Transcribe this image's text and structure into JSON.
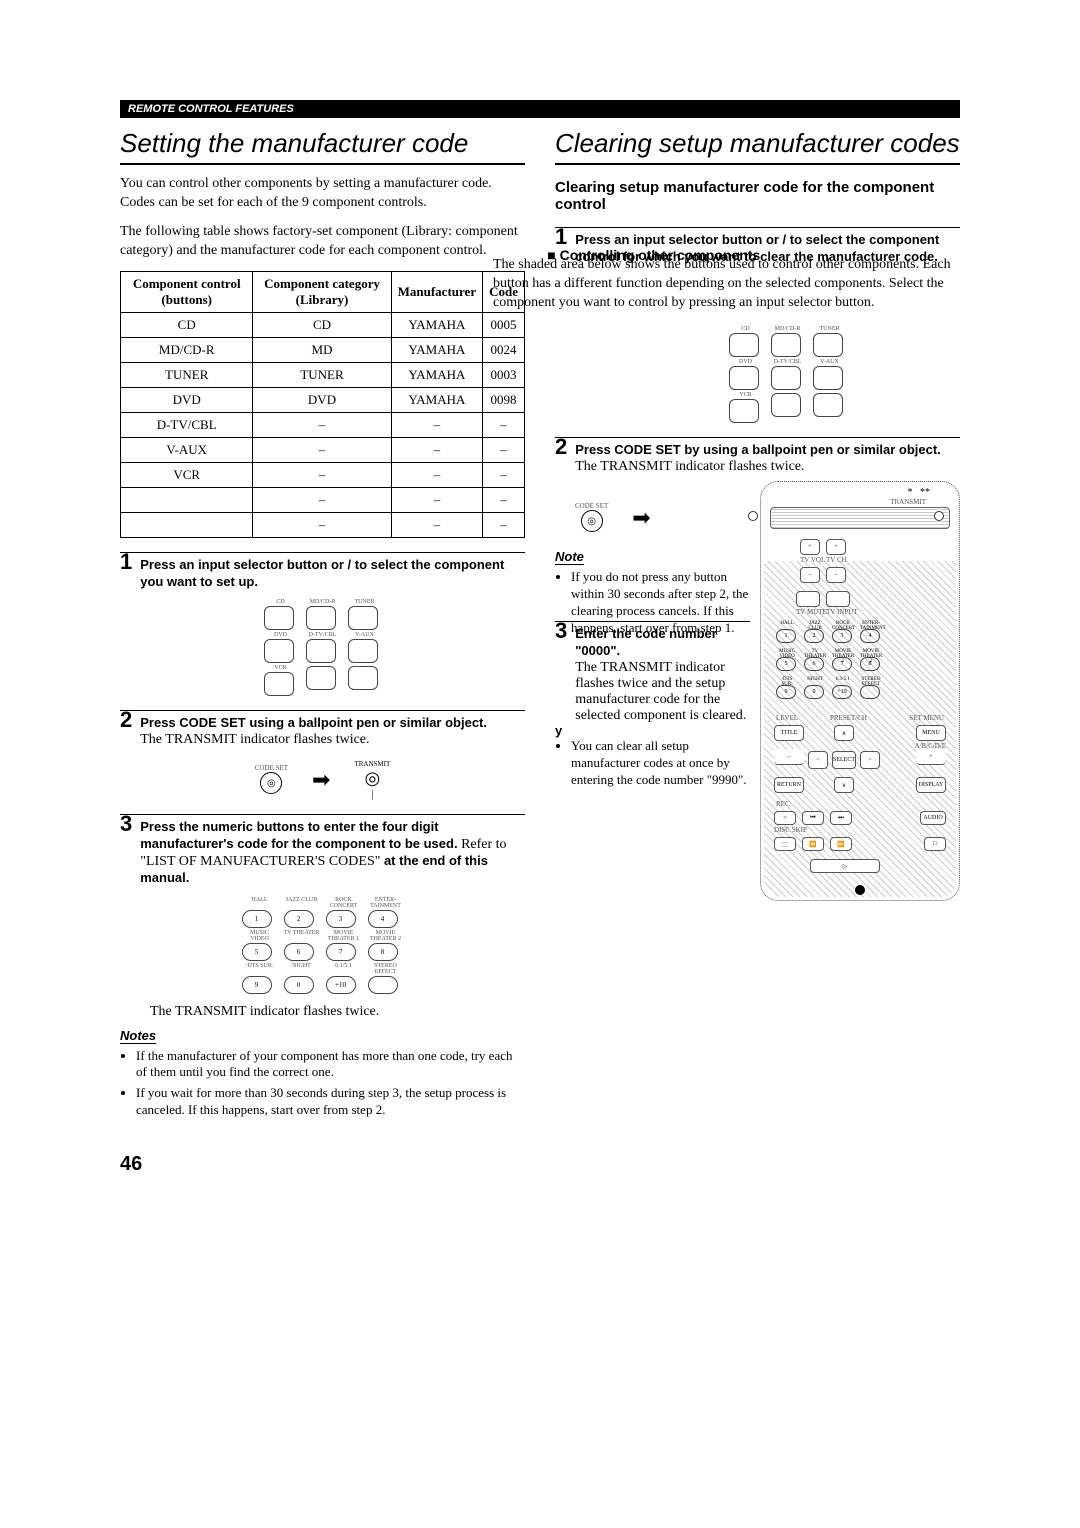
{
  "banner": "REMOTE CONTROL FEATURES",
  "left": {
    "title": "Setting the manufacturer code",
    "intro1": "You can control other components by setting a manufacturer code. Codes can be set for each of the 9 component controls.",
    "intro2": "The following table shows factory-set component (Library: component category) and the manufacturer code for each component control.",
    "table": {
      "headers": [
        "Component control (buttons)",
        "Component category (Library)",
        "Manufacturer",
        "Code"
      ],
      "rows": [
        [
          "CD",
          "CD",
          "YAMAHA",
          "0005"
        ],
        [
          "MD/CD-R",
          "MD",
          "YAMAHA",
          "0024"
        ],
        [
          "TUNER",
          "TUNER",
          "YAMAHA",
          "0003"
        ],
        [
          "DVD",
          "DVD",
          "YAMAHA",
          "0098"
        ],
        [
          "D-TV/CBL",
          "–",
          "–",
          "–"
        ],
        [
          "V-AUX",
          "–",
          "–",
          "–"
        ],
        [
          "VCR",
          "–",
          "–",
          "–"
        ],
        [
          "",
          "–",
          "–",
          "–"
        ],
        [
          "",
          "–",
          "–",
          "–"
        ]
      ]
    },
    "step1": "Press an input selector button or     /     to select the component you want to set up.",
    "step2_bold": "Press CODE SET using a ballpoint pen or similar object.",
    "step2_text": "The TRANSMIT indicator flashes twice.",
    "step3_bold": "Press the numeric buttons to enter the four digit manufacturer's code for the component to be used.",
    "step3_text1": "Refer to \"LIST OF MANUFACTURER'S CODES\"",
    "step3_bold2": "at the end of this manual.",
    "step3_text2": "The TRANSMIT indicator flashes twice.",
    "notes_label": "Notes",
    "notes": [
      "If the manufacturer of your component has more than one code, try each of them until you find the correct one.",
      "If you wait for more than 30 seconds during step 3, the setup process is canceled. If this happens, start over from step 2."
    ],
    "input_labels_row1": [
      "CD",
      "MD/CD-R",
      "TUNER"
    ],
    "input_labels_row2": [
      "DVD",
      "D-TV/CBL",
      "V-AUX"
    ],
    "input_labels_row3": [
      "VCR",
      "",
      ""
    ],
    "codeset_label": "CODE SET",
    "transmit_label": "TRANSMIT",
    "keypad_labels": [
      [
        "HALL",
        "JAZZ CLUB",
        "ROCK CONCERT",
        "ENTER-TAINMENT"
      ],
      [
        "MUSIC VIDEO",
        "TV THEATER",
        "MOVIE THEATER 1",
        "MOVIE THEATER 2"
      ],
      [
        "/DTS SUR.",
        "NIGHT",
        "6.1/5.1",
        "STEREO EFFECT"
      ]
    ],
    "keypad_nums": [
      [
        "1",
        "2",
        "3",
        "4"
      ],
      [
        "5",
        "6",
        "7",
        "8"
      ],
      [
        "9",
        "0",
        "+10",
        ""
      ]
    ]
  },
  "right": {
    "title": "Clearing setup manufacturer codes",
    "sub": "Clearing setup manufacturer code for the component control",
    "step1_bold": "Press an input selector button or     /     to",
    "overlap_line1": "■   Controlling other components",
    "step1_bold_cont": "select the component control for which you want to clear the manufacturer code.",
    "overlap_line2": "The shaded area below shows the buttons used to control other components. Each button has a different function depending on the selected components. Select the component you want to control by pressing an input selector button.",
    "input_labels_row1": [
      "CD",
      "MD/CD-R",
      "TUNER"
    ],
    "input_labels_row2": [
      "DVD",
      "D-TV/CBL",
      "V-AUX"
    ],
    "input_labels_row3": [
      "VCR",
      "",
      ""
    ],
    "step2_bold": "Press CODE SET by using a ballpoint pen or similar object.",
    "step2_text": "The TRANSMIT indicator flashes twice.",
    "note_label": "Note",
    "note_items": [
      "If you do not press any button within 30 seconds after step 2, the clearing process cancels. If this happens, start over from step 1."
    ],
    "step3_bold": "Enter the code number \"0000\".",
    "step3_text": "The TRANSMIT indicator flashes twice and the setup manufacturer code for the selected component is cleared.",
    "tip_y": "y",
    "tip_text": "You can clear all setup manufacturer codes at once by entering the code number \"9990\".",
    "remote_labels": {
      "transmit": "TRANSMIT",
      "tvvol": "TV VOL",
      "tvch": "TV CH",
      "tvmute": "TV MUTE",
      "tvinput": "TV INPUT",
      "title": "TITLE",
      "menu": "MENU",
      "return": "RETURN",
      "display": "DISPLAY",
      "level": "LEVEL",
      "presetch": "PRESET/CH",
      "setmenu": "SET MENU",
      "abcde": "A/B/C/D/E",
      "rec": "REC",
      "discskip": "DISC SKIP",
      "audio": "AUDIO",
      "select": "SELECT"
    }
  },
  "page_number": "46"
}
